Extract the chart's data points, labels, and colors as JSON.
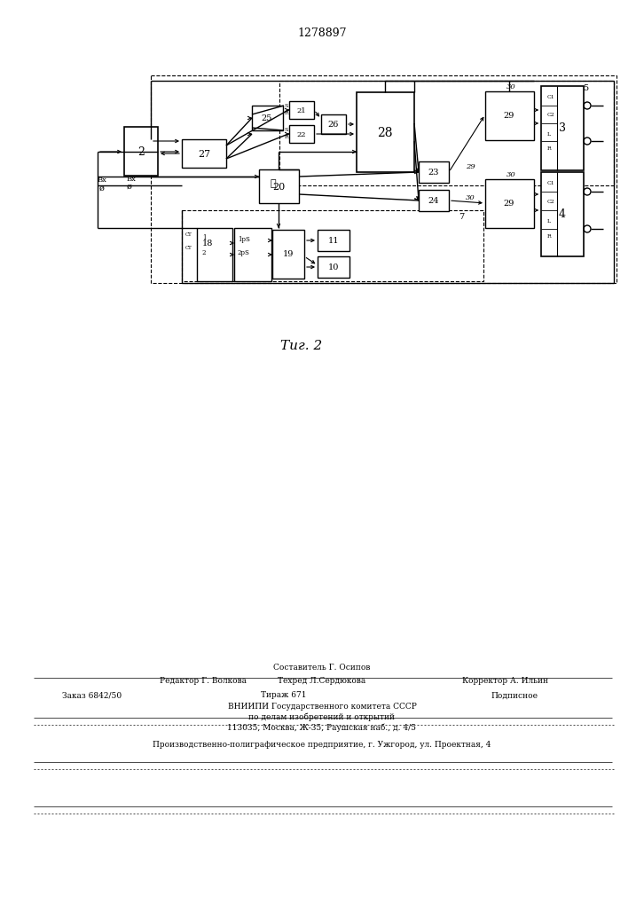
{
  "title": "1278897",
  "fig_caption": "Τиг. 2",
  "bg": "#ffffff",
  "lc": "#000000",
  "footer1": "Составитель Г. Осипов",
  "footer2": "Редактор Г. Волкова",
  "footer2b": "Техред Л.Сердюкова",
  "footer2c": "Корректор А. Ильин",
  "footer3": "Заказ 6842/50",
  "footer3b": "Тираж 671",
  "footer3c": "Подписное",
  "footer4": "ВНИИПИ Государственного комитета СССР",
  "footer5": "по делам изобретений и открытий",
  "footer6": "113035, Москва, Ж-35, Раушская наб., д. 4/5",
  "footer7": "Производственно-полиграфическое предприятие, г. Ужгород, ул. Проектная, 4"
}
